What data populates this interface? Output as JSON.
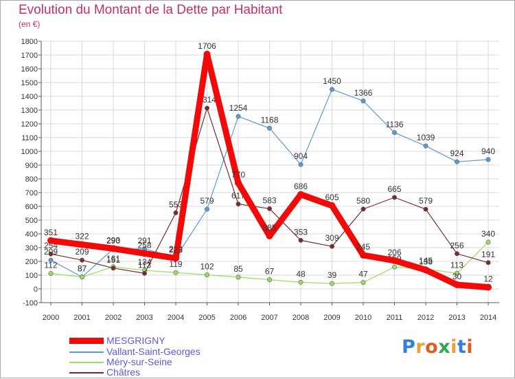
{
  "title": "Evolution du Montant de la Dette par Habitant",
  "subtitle": "(en €)",
  "logo": {
    "text": "Proxiti",
    "letter_colors": [
      "#2f7ee0",
      "#e8a13a",
      "#e25a1c",
      "#2fa84f",
      "#e8a13a",
      "#2f7ee0",
      "#e25a1c"
    ]
  },
  "chart_data": {
    "type": "line",
    "x": [
      "2000",
      "2001",
      "2002",
      "2003",
      "2004",
      "2005",
      "2006",
      "2007",
      "2008",
      "2009",
      "2010",
      "2011",
      "2012",
      "2013",
      "2014"
    ],
    "ylim": [
      -100,
      1800
    ],
    "yticks": [
      "-100",
      "0",
      "100",
      "200",
      "300",
      "400",
      "500",
      "600",
      "700",
      "800",
      "900",
      "1000",
      "1100",
      "1200",
      "1300",
      "1400",
      "1500",
      "1600",
      "1700",
      "1800"
    ],
    "grid": true,
    "series": [
      {
        "name": "Vallant-Saint-Georges",
        "color": "#5b9bd0",
        "values": [
          209,
          87,
          290,
          291,
          229,
          579,
          1254,
          1168,
          904,
          1450,
          1366,
          1136,
          1039,
          924,
          940
        ],
        "labels": [
          "209",
          "87",
          "290",
          "291",
          "229",
          "579",
          "1254",
          "1168",
          "904",
          "1450",
          "1366",
          "1136",
          "1039",
          "924",
          "940"
        ]
      },
      {
        "name": "Méry-sur-Seine",
        "color": "#9bdc5e",
        "values": [
          112,
          87,
          161,
          134,
          119,
          102,
          85,
          67,
          48,
          39,
          47,
          159,
          145,
          113,
          340
        ],
        "labels": [
          "112",
          "87",
          "161",
          "134",
          "119",
          "102",
          "85",
          "67",
          "48",
          "39",
          "47",
          "159",
          "145",
          "113",
          "340"
        ]
      },
      {
        "name": "Châtres",
        "color": "#7a2a2a",
        "values": [
          254,
          209,
          151,
          113,
          553,
          1314,
          617,
          583,
          353,
          309,
          580,
          665,
          579,
          256,
          191
        ],
        "labels": [
          "254",
          "209",
          "151",
          "113",
          "553",
          "1314",
          "617",
          "583",
          "353",
          "309",
          "580",
          "665",
          "579",
          "256",
          "191"
        ]
      },
      {
        "name": "MESGRIGNY",
        "color": "#f20a0a",
        "values": [
          351,
          322,
          293,
          258,
          223,
          1706,
          770,
          385,
          686,
          605,
          245,
          206,
          138,
          30,
          12
        ],
        "labels": [
          "351",
          "322",
          "293",
          "258",
          "223",
          "1706",
          "770",
          "385",
          "686",
          "605",
          "245",
          "206",
          "138",
          "30",
          "12"
        ]
      }
    ],
    "legend_order": [
      "MESGRIGNY",
      "Vallant-Saint-Georges",
      "Méry-sur-Seine",
      "Châtres"
    ],
    "legend_position": "bottom-left"
  }
}
